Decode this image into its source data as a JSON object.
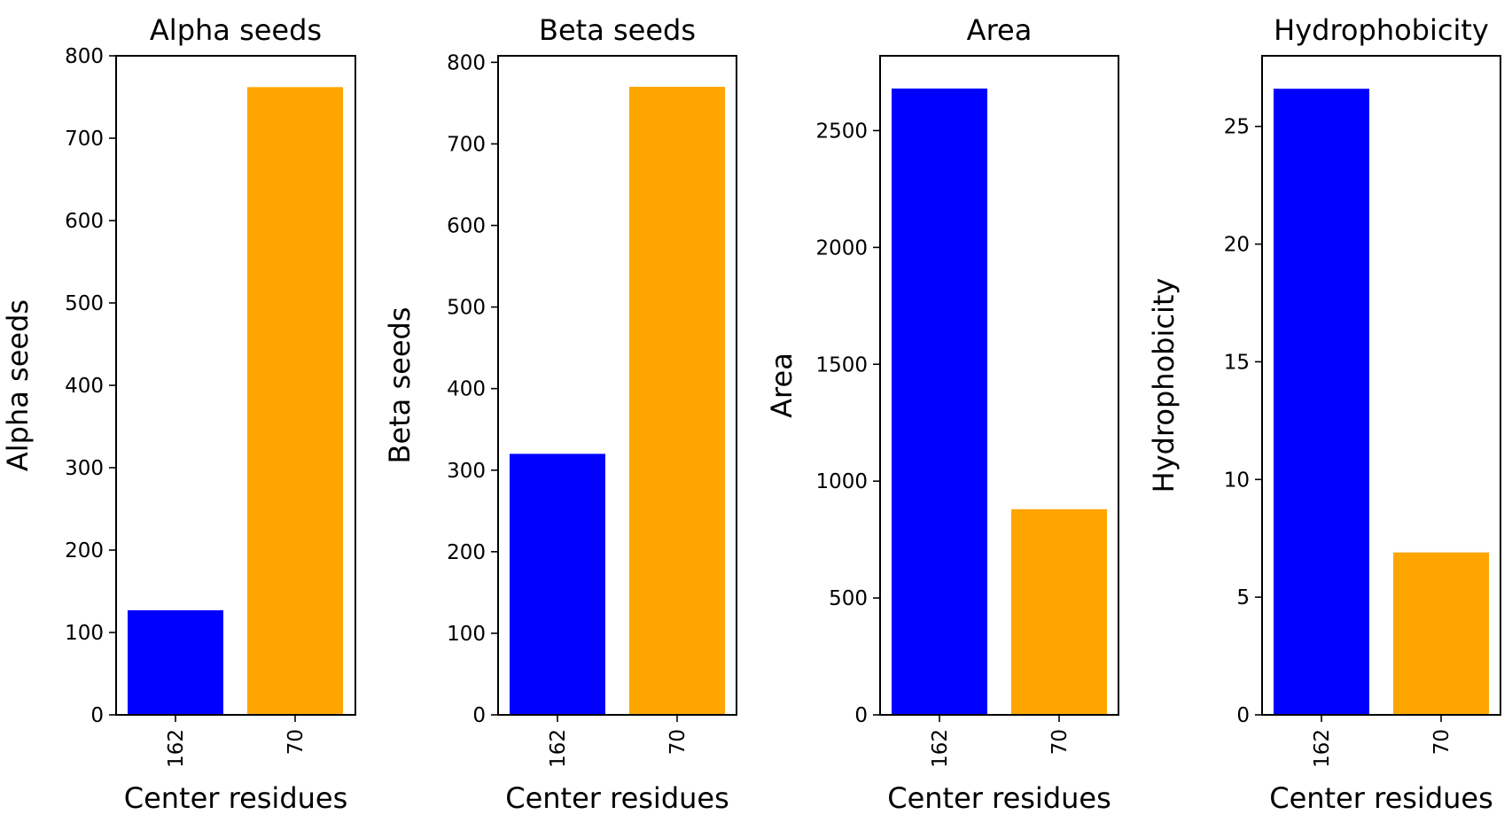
{
  "chart_data": [
    {
      "type": "bar",
      "title": "Alpha seeds",
      "xlabel": "Center residues",
      "ylabel": "Alpha seeds",
      "categories": [
        "162",
        "70"
      ],
      "values": [
        127,
        762
      ],
      "colors": [
        "#0000ff",
        "#ffa500"
      ],
      "ylim": [
        0,
        800
      ],
      "yticks": [
        0,
        100,
        200,
        300,
        400,
        500,
        600,
        700,
        800
      ],
      "grid": false,
      "xtick_rotation": 90
    },
    {
      "type": "bar",
      "title": "Beta seeds",
      "xlabel": "Center residues",
      "ylabel": "Beta seeds",
      "categories": [
        "162",
        "70"
      ],
      "values": [
        320,
        770
      ],
      "colors": [
        "#0000ff",
        "#ffa500"
      ],
      "ylim": [
        0,
        808
      ],
      "yticks": [
        0,
        100,
        200,
        300,
        400,
        500,
        600,
        700,
        800
      ],
      "grid": false,
      "xtick_rotation": 90
    },
    {
      "type": "bar",
      "title": "Area",
      "xlabel": "Center residues",
      "ylabel": "Area",
      "categories": [
        "162",
        "70"
      ],
      "values": [
        2680,
        880
      ],
      "colors": [
        "#0000ff",
        "#ffa500"
      ],
      "ylim": [
        0,
        2820
      ],
      "yticks": [
        0,
        500,
        1000,
        1500,
        2000,
        2500
      ],
      "grid": false,
      "xtick_rotation": 90
    },
    {
      "type": "bar",
      "title": "Hydrophobicity",
      "xlabel": "Center residues",
      "ylabel": "Hydrophobicity",
      "categories": [
        "162",
        "70"
      ],
      "values": [
        26.6,
        6.9
      ],
      "colors": [
        "#0000ff",
        "#ffa500"
      ],
      "ylim": [
        0,
        28
      ],
      "yticks": [
        0,
        5,
        10,
        15,
        20,
        25
      ],
      "grid": false,
      "xtick_rotation": 90
    }
  ]
}
